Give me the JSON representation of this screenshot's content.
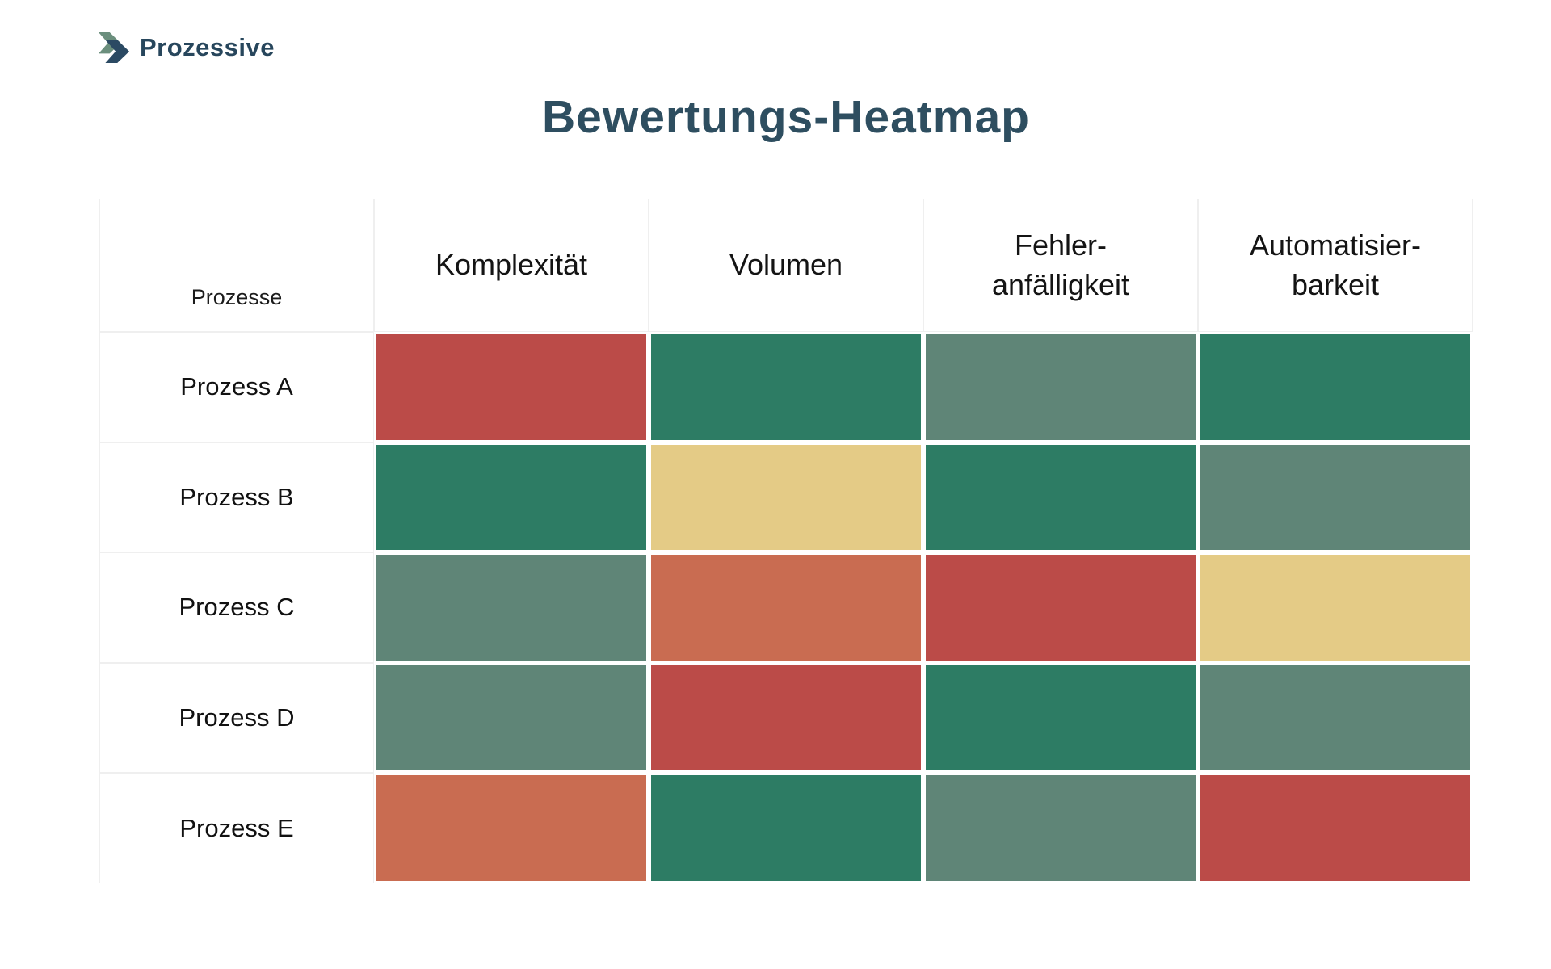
{
  "logo": {
    "text": "Prozessive",
    "text_color": "#27465c",
    "icon": "double-chevron-right",
    "icon_front_color": "#2b4a63",
    "icon_back_color": "#6b8f7d"
  },
  "title": "Bewertungs-Heatmap",
  "chart_data": {
    "type": "heatmap",
    "title": "Bewertungs-Heatmap",
    "corner_label": "Prozesse",
    "columns": [
      "Komplexität",
      "Volumen",
      "Fehler-\nanfälligkeit",
      "Automatisier-\nbarkeit"
    ],
    "rows": [
      "Prozess A",
      "Prozess B",
      "Prozess C",
      "Prozess D",
      "Prozess E"
    ],
    "values": [
      [
        "red",
        "green",
        "sage",
        "green"
      ],
      [
        "green",
        "yellow",
        "green",
        "sage"
      ],
      [
        "sage",
        "orange",
        "red",
        "yellow"
      ],
      [
        "sage",
        "red",
        "green",
        "sage"
      ],
      [
        "orange",
        "green",
        "sage",
        "red"
      ]
    ],
    "palette": {
      "red": "#bb4b48",
      "orange": "#c96c51",
      "yellow": "#e4cb86",
      "sage": "#5f8577",
      "green": "#2d7c64"
    },
    "legend": "none",
    "grid": "white gaps between cells, light gray borders on label cells"
  }
}
